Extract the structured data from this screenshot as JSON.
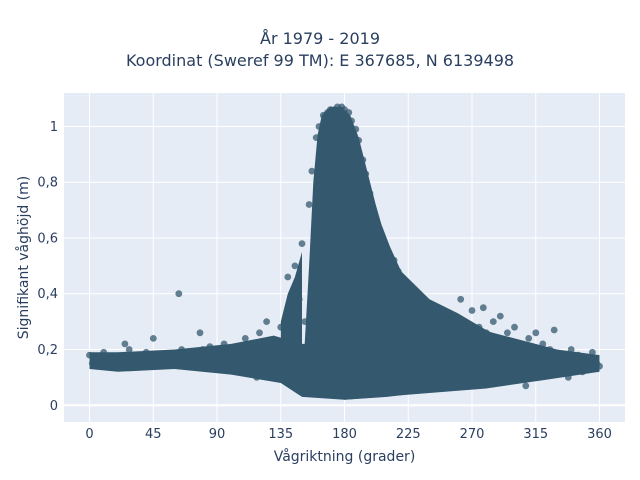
{
  "chart_data": {
    "type": "scatter",
    "title": "År 1979 - 2019",
    "subtitle": "Koordinat (Sweref 99 TM): E 367685, N 6139498",
    "xlabel": "Vågriktning (grader)",
    "ylabel": "Signifikant våghöjd (m)",
    "xlim": [
      -18,
      378
    ],
    "ylim": [
      -0.06,
      1.12
    ],
    "xticks": [
      0,
      45,
      90,
      135,
      180,
      225,
      270,
      315,
      360
    ],
    "xtick_labels": [
      "0",
      "45",
      "90",
      "135",
      "180",
      "225",
      "270",
      "315",
      "360"
    ],
    "yticks": [
      0,
      0.2,
      0.4,
      0.6,
      0.8,
      1
    ],
    "ytick_labels": [
      "0",
      "0,2",
      "0,4",
      "0,6",
      "0,8",
      "1"
    ],
    "grid": true,
    "colors": {
      "marker": "#34586e",
      "plot_bg": "#e5ecf6",
      "grid": "#ffffff",
      "text": "#2a3f5f"
    },
    "series": [
      {
        "points": [
          [
            0,
            0.18
          ],
          [
            2,
            0.15
          ],
          [
            5,
            0.14
          ],
          [
            8,
            0.17
          ],
          [
            10,
            0.19
          ],
          [
            15,
            0.16
          ],
          [
            20,
            0.15
          ],
          [
            25,
            0.22
          ],
          [
            28,
            0.2
          ],
          [
            30,
            0.14
          ],
          [
            35,
            0.17
          ],
          [
            40,
            0.19
          ],
          [
            45,
            0.24
          ],
          [
            48,
            0.16
          ],
          [
            50,
            0.15
          ],
          [
            55,
            0.18
          ],
          [
            60,
            0.17
          ],
          [
            63,
            0.4
          ],
          [
            65,
            0.2
          ],
          [
            70,
            0.18
          ],
          [
            75,
            0.15
          ],
          [
            78,
            0.26
          ],
          [
            80,
            0.2
          ],
          [
            85,
            0.21
          ],
          [
            90,
            0.19
          ],
          [
            95,
            0.22
          ],
          [
            100,
            0.2
          ],
          [
            105,
            0.18
          ],
          [
            110,
            0.24
          ],
          [
            115,
            0.22
          ],
          [
            118,
            0.1
          ],
          [
            120,
            0.26
          ],
          [
            125,
            0.3
          ],
          [
            130,
            0.2
          ],
          [
            135,
            0.28
          ],
          [
            140,
            0.46
          ],
          [
            142,
            0.32
          ],
          [
            145,
            0.5
          ],
          [
            148,
            0.38
          ],
          [
            150,
            0.58
          ],
          [
            152,
            0.3
          ],
          [
            155,
            0.72
          ],
          [
            157,
            0.84
          ],
          [
            160,
            0.96
          ],
          [
            161,
            0.12
          ],
          [
            162,
            1.0
          ],
          [
            163,
            0.2
          ],
          [
            164,
            0.35
          ],
          [
            165,
            1.04
          ],
          [
            167,
            0.6
          ],
          [
            168,
            1.05
          ],
          [
            170,
            1.06
          ],
          [
            172,
            0.45
          ],
          [
            173,
            1.06
          ],
          [
            175,
            1.07
          ],
          [
            176,
            0.05
          ],
          [
            177,
            0.8
          ],
          [
            178,
            1.07
          ],
          [
            180,
            1.06
          ],
          [
            182,
            0.9
          ],
          [
            183,
            1.05
          ],
          [
            185,
            1.02
          ],
          [
            187,
            0.3
          ],
          [
            188,
            0.99
          ],
          [
            190,
            0.95
          ],
          [
            192,
            0.1
          ],
          [
            193,
            0.88
          ],
          [
            195,
            0.83
          ],
          [
            198,
            0.76
          ],
          [
            200,
            0.7
          ],
          [
            202,
            0.2
          ],
          [
            205,
            0.62
          ],
          [
            208,
            0.58
          ],
          [
            210,
            0.56
          ],
          [
            212,
            0.08
          ],
          [
            215,
            0.52
          ],
          [
            218,
            0.48
          ],
          [
            220,
            0.46
          ],
          [
            225,
            0.42
          ],
          [
            228,
            0.18
          ],
          [
            230,
            0.4
          ],
          [
            235,
            0.38
          ],
          [
            240,
            0.36
          ],
          [
            242,
            0.12
          ],
          [
            245,
            0.35
          ],
          [
            248,
            0.22
          ],
          [
            250,
            0.33
          ],
          [
            255,
            0.32
          ],
          [
            258,
            0.1
          ],
          [
            260,
            0.31
          ],
          [
            262,
            0.38
          ],
          [
            265,
            0.3
          ],
          [
            270,
            0.34
          ],
          [
            272,
            0.15
          ],
          [
            275,
            0.28
          ],
          [
            278,
            0.35
          ],
          [
            280,
            0.26
          ],
          [
            282,
            0.08
          ],
          [
            285,
            0.3
          ],
          [
            288,
            0.24
          ],
          [
            290,
            0.32
          ],
          [
            295,
            0.26
          ],
          [
            298,
            0.12
          ],
          [
            300,
            0.28
          ],
          [
            305,
            0.22
          ],
          [
            308,
            0.07
          ],
          [
            310,
            0.24
          ],
          [
            315,
            0.26
          ],
          [
            318,
            0.15
          ],
          [
            320,
            0.22
          ],
          [
            325,
            0.2
          ],
          [
            328,
            0.27
          ],
          [
            330,
            0.18
          ],
          [
            335,
            0.16
          ],
          [
            338,
            0.1
          ],
          [
            340,
            0.2
          ],
          [
            345,
            0.18
          ],
          [
            348,
            0.12
          ],
          [
            350,
            0.16
          ],
          [
            355,
            0.19
          ],
          [
            358,
            0.15
          ],
          [
            360,
            0.14
          ]
        ]
      }
    ]
  }
}
